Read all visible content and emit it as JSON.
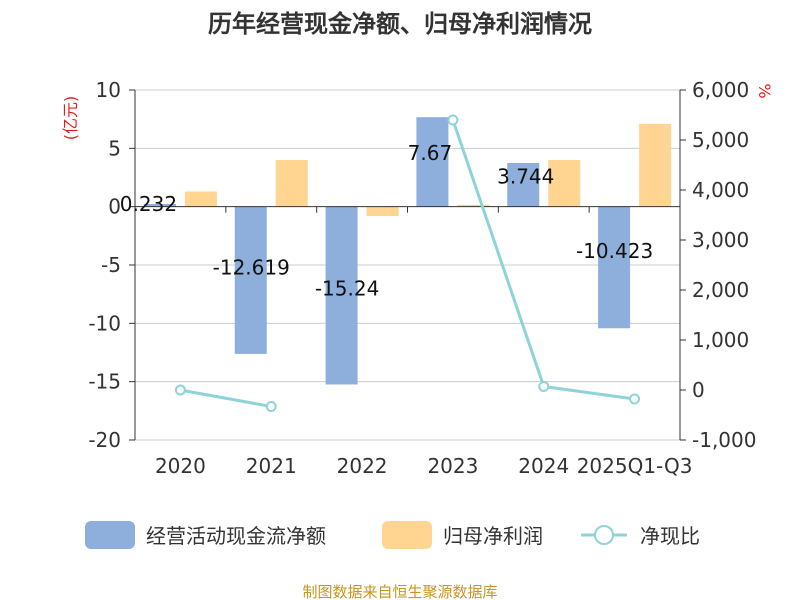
{
  "chart_data": {
    "type": "bar",
    "title": "历年经营现金净额、归母净利润情况",
    "categories": [
      "2020",
      "2021",
      "2022",
      "2023",
      "2024",
      "2025Q1-Q3"
    ],
    "series": [
      {
        "name": "经营活动现金流净额",
        "kind": "bar",
        "axis": "left",
        "color": "#8eaedb",
        "values": [
          0.232,
          -12.619,
          -15.24,
          7.67,
          3.744,
          -10.423
        ],
        "labels": [
          "0.232",
          "-12.619",
          "-15.24",
          "7.67",
          "3.744",
          "-10.423"
        ]
      },
      {
        "name": "归母净利润",
        "kind": "bar",
        "axis": "left",
        "color": "#ffd591",
        "values": [
          1.3,
          4.0,
          -0.8,
          0.15,
          4.0,
          7.1
        ]
      },
      {
        "name": "净现比",
        "kind": "line",
        "axis": "right",
        "color": "#8ed3d9",
        "values": [
          0,
          -330,
          null,
          5400,
          70,
          -180
        ]
      }
    ],
    "y_left": {
      "unit": "(亿元)",
      "min": -20,
      "max": 10,
      "ticks": [
        "10",
        "5",
        "0",
        "-5",
        "-10",
        "-15",
        "-20"
      ],
      "tick_values": [
        10,
        5,
        0,
        -5,
        -10,
        -15,
        -20
      ]
    },
    "y_right": {
      "unit": "%",
      "min": -1000,
      "max": 6000,
      "ticks": [
        "6,000",
        "5,000",
        "4,000",
        "3,000",
        "2,000",
        "1,000",
        "0",
        "-1,000"
      ],
      "tick_values": [
        6000,
        5000,
        4000,
        3000,
        2000,
        1000,
        0,
        -1000
      ]
    },
    "legend": [
      "经营活动现金流净额",
      "归母净利润",
      "净现比"
    ],
    "grid": true
  },
  "source": "制图数据来自恒生聚源数据库"
}
